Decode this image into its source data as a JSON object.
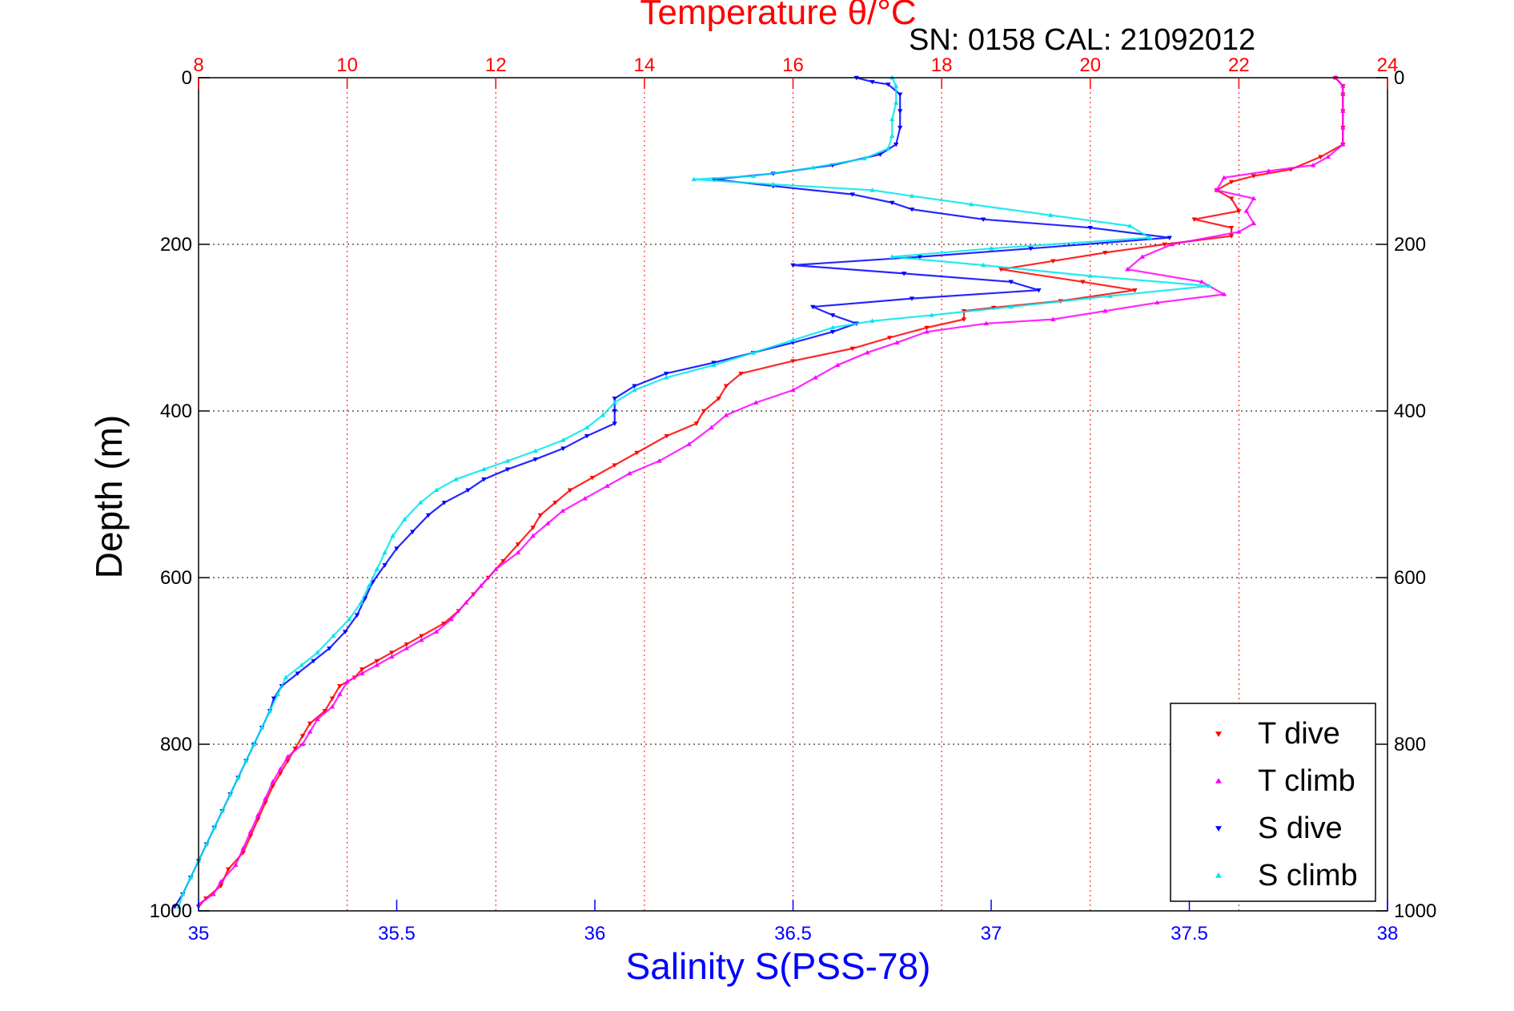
{
  "chart_data": {
    "type": "scatter",
    "title": "Temperature θ/°C",
    "subtitle": "SN: 0158  CAL: 21092012",
    "xlabel_bottom": "Salinity S(PSS-78)",
    "xlabel_top": "Temperature θ/°C",
    "ylabel": "Depth (m)",
    "x_bottom_range": [
      35,
      38
    ],
    "x_top_range": [
      8,
      24
    ],
    "y_range": [
      0,
      1000
    ],
    "y_reversed": true,
    "x_bottom_ticks": [
      "35",
      "35.5",
      "36",
      "36.5",
      "37",
      "37.5",
      "38"
    ],
    "x_top_ticks": [
      "8",
      "10",
      "12",
      "14",
      "16",
      "18",
      "20",
      "22",
      "24"
    ],
    "y_ticks": [
      "0",
      "200",
      "400",
      "600",
      "800",
      "1000"
    ],
    "grid": "vertical dotted at temperature ticks, horizontal dotted at depth ticks",
    "legend_position": "bottom-right",
    "colors": {
      "t_dive": "#ff0000",
      "t_climb": "#ff00ff",
      "s_dive": "#0000ff",
      "s_climb": "#00e5ee",
      "temp_axis": "#ff0000",
      "sal_axis": "#0000ff",
      "frame": "#000000"
    },
    "series": [
      {
        "name": "T dive",
        "axis": "temperature",
        "marker": "triangle-down",
        "points": [
          [
            23.3,
            0
          ],
          [
            23.4,
            10
          ],
          [
            23.4,
            20
          ],
          [
            23.4,
            40
          ],
          [
            23.4,
            60
          ],
          [
            23.4,
            80
          ],
          [
            23.1,
            95
          ],
          [
            22.7,
            110
          ],
          [
            22.2,
            118
          ],
          [
            21.9,
            125
          ],
          [
            21.7,
            135
          ],
          [
            21.9,
            145
          ],
          [
            22.0,
            160
          ],
          [
            21.4,
            170
          ],
          [
            21.9,
            180
          ],
          [
            21.9,
            190
          ],
          [
            21.0,
            200
          ],
          [
            20.2,
            210
          ],
          [
            19.5,
            220
          ],
          [
            18.8,
            230
          ],
          [
            19.9,
            245
          ],
          [
            20.6,
            255
          ],
          [
            19.6,
            268
          ],
          [
            18.7,
            276
          ],
          [
            18.3,
            280
          ],
          [
            18.3,
            290
          ],
          [
            17.8,
            300
          ],
          [
            17.3,
            312
          ],
          [
            16.8,
            325
          ],
          [
            16.0,
            340
          ],
          [
            15.3,
            355
          ],
          [
            15.1,
            370
          ],
          [
            15.0,
            385
          ],
          [
            14.8,
            400
          ],
          [
            14.7,
            415
          ],
          [
            14.3,
            430
          ],
          [
            13.9,
            450
          ],
          [
            13.6,
            465
          ],
          [
            13.3,
            480
          ],
          [
            13.0,
            495
          ],
          [
            12.8,
            510
          ],
          [
            12.6,
            525
          ],
          [
            12.5,
            540
          ],
          [
            12.3,
            560
          ],
          [
            12.1,
            580
          ],
          [
            11.9,
            600
          ],
          [
            11.7,
            620
          ],
          [
            11.5,
            640
          ],
          [
            11.3,
            655
          ],
          [
            11.0,
            670
          ],
          [
            10.8,
            680
          ],
          [
            10.6,
            690
          ],
          [
            10.4,
            700
          ],
          [
            10.2,
            710
          ],
          [
            10.1,
            720
          ],
          [
            9.9,
            730
          ],
          [
            9.8,
            745
          ],
          [
            9.7,
            760
          ],
          [
            9.5,
            775
          ],
          [
            9.4,
            790
          ],
          [
            9.3,
            805
          ],
          [
            9.2,
            820
          ],
          [
            9.1,
            835
          ],
          [
            9.0,
            850
          ],
          [
            8.9,
            870
          ],
          [
            8.8,
            890
          ],
          [
            8.7,
            910
          ],
          [
            8.6,
            930
          ],
          [
            8.4,
            950
          ],
          [
            8.3,
            970
          ],
          [
            8.1,
            985
          ],
          [
            8.0,
            995
          ]
        ]
      },
      {
        "name": "T climb",
        "axis": "temperature",
        "marker": "triangle-up",
        "points": [
          [
            23.3,
            0
          ],
          [
            23.4,
            10
          ],
          [
            23.4,
            20
          ],
          [
            23.4,
            40
          ],
          [
            23.4,
            60
          ],
          [
            23.4,
            80
          ],
          [
            23.2,
            95
          ],
          [
            23.0,
            105
          ],
          [
            22.4,
            112
          ],
          [
            21.8,
            120
          ],
          [
            21.7,
            135
          ],
          [
            22.2,
            145
          ],
          [
            22.1,
            160
          ],
          [
            22.2,
            175
          ],
          [
            22.0,
            185
          ],
          [
            21.1,
            200
          ],
          [
            20.7,
            215
          ],
          [
            20.5,
            230
          ],
          [
            21.5,
            245
          ],
          [
            21.8,
            260
          ],
          [
            20.9,
            270
          ],
          [
            20.2,
            280
          ],
          [
            19.5,
            290
          ],
          [
            18.6,
            295
          ],
          [
            17.8,
            305
          ],
          [
            17.4,
            318
          ],
          [
            17.0,
            330
          ],
          [
            16.6,
            345
          ],
          [
            16.3,
            360
          ],
          [
            16.0,
            375
          ],
          [
            15.5,
            390
          ],
          [
            15.1,
            405
          ],
          [
            14.9,
            420
          ],
          [
            14.6,
            440
          ],
          [
            14.2,
            460
          ],
          [
            13.8,
            475
          ],
          [
            13.5,
            490
          ],
          [
            13.2,
            505
          ],
          [
            12.9,
            520
          ],
          [
            12.7,
            535
          ],
          [
            12.5,
            550
          ],
          [
            12.3,
            570
          ],
          [
            12.0,
            590
          ],
          [
            11.8,
            610
          ],
          [
            11.6,
            630
          ],
          [
            11.4,
            650
          ],
          [
            11.2,
            665
          ],
          [
            11.0,
            675
          ],
          [
            10.8,
            685
          ],
          [
            10.6,
            695
          ],
          [
            10.4,
            705
          ],
          [
            10.2,
            715
          ],
          [
            10.0,
            725
          ],
          [
            9.9,
            740
          ],
          [
            9.8,
            755
          ],
          [
            9.6,
            770
          ],
          [
            9.5,
            785
          ],
          [
            9.4,
            800
          ],
          [
            9.2,
            815
          ],
          [
            9.1,
            830
          ],
          [
            9.0,
            845
          ],
          [
            8.9,
            865
          ],
          [
            8.8,
            885
          ],
          [
            8.7,
            905
          ],
          [
            8.6,
            925
          ],
          [
            8.5,
            945
          ],
          [
            8.3,
            965
          ],
          [
            8.2,
            980
          ],
          [
            8.0,
            992
          ]
        ]
      },
      {
        "name": "S dive",
        "axis": "salinity",
        "marker": "triangle-down",
        "points": [
          [
            36.66,
            0
          ],
          [
            36.7,
            5
          ],
          [
            36.74,
            8
          ],
          [
            36.77,
            20
          ],
          [
            36.77,
            40
          ],
          [
            36.77,
            60
          ],
          [
            36.76,
            80
          ],
          [
            36.72,
            92
          ],
          [
            36.6,
            105
          ],
          [
            36.45,
            115
          ],
          [
            36.3,
            122
          ],
          [
            36.45,
            130
          ],
          [
            36.65,
            140
          ],
          [
            36.75,
            150
          ],
          [
            36.8,
            158
          ],
          [
            36.98,
            170
          ],
          [
            37.25,
            180
          ],
          [
            37.45,
            192
          ],
          [
            37.1,
            205
          ],
          [
            36.82,
            215
          ],
          [
            36.5,
            225
          ],
          [
            36.78,
            235
          ],
          [
            37.05,
            245
          ],
          [
            37.12,
            255
          ],
          [
            36.8,
            265
          ],
          [
            36.55,
            275
          ],
          [
            36.6,
            285
          ],
          [
            36.66,
            295
          ],
          [
            36.6,
            305
          ],
          [
            36.5,
            318
          ],
          [
            36.4,
            330
          ],
          [
            36.3,
            342
          ],
          [
            36.18,
            355
          ],
          [
            36.1,
            370
          ],
          [
            36.05,
            385
          ],
          [
            36.05,
            400
          ],
          [
            36.05,
            415
          ],
          [
            35.98,
            430
          ],
          [
            35.92,
            445
          ],
          [
            35.85,
            458
          ],
          [
            35.78,
            470
          ],
          [
            35.72,
            482
          ],
          [
            35.68,
            495
          ],
          [
            35.62,
            510
          ],
          [
            35.58,
            525
          ],
          [
            35.54,
            545
          ],
          [
            35.5,
            565
          ],
          [
            35.47,
            585
          ],
          [
            35.44,
            605
          ],
          [
            35.42,
            625
          ],
          [
            35.4,
            645
          ],
          [
            35.37,
            665
          ],
          [
            35.33,
            685
          ],
          [
            35.29,
            700
          ],
          [
            35.25,
            715
          ],
          [
            35.21,
            730
          ],
          [
            35.19,
            745
          ],
          [
            35.18,
            760
          ],
          [
            35.16,
            780
          ],
          [
            35.14,
            800
          ],
          [
            35.12,
            820
          ],
          [
            35.1,
            840
          ],
          [
            35.08,
            860
          ],
          [
            35.06,
            880
          ],
          [
            35.04,
            900
          ],
          [
            35.02,
            920
          ],
          [
            35.0,
            940
          ],
          [
            34.98,
            960
          ],
          [
            34.96,
            980
          ],
          [
            34.94,
            995
          ]
        ]
      },
      {
        "name": "S climb",
        "axis": "salinity",
        "marker": "triangle-up",
        "points": [
          [
            36.75,
            0
          ],
          [
            36.76,
            10
          ],
          [
            36.76,
            30
          ],
          [
            36.75,
            50
          ],
          [
            36.75,
            70
          ],
          [
            36.74,
            85
          ],
          [
            36.68,
            97
          ],
          [
            36.55,
            108
          ],
          [
            36.4,
            118
          ],
          [
            36.25,
            122
          ],
          [
            36.45,
            128
          ],
          [
            36.7,
            135
          ],
          [
            36.8,
            142
          ],
          [
            36.95,
            152
          ],
          [
            37.15,
            165
          ],
          [
            37.35,
            178
          ],
          [
            37.4,
            192
          ],
          [
            37.0,
            205
          ],
          [
            36.75,
            215
          ],
          [
            36.98,
            225
          ],
          [
            37.25,
            238
          ],
          [
            37.55,
            250
          ],
          [
            37.3,
            262
          ],
          [
            37.05,
            275
          ],
          [
            36.85,
            285
          ],
          [
            36.7,
            292
          ],
          [
            36.6,
            300
          ],
          [
            36.5,
            315
          ],
          [
            36.4,
            330
          ],
          [
            36.3,
            345
          ],
          [
            36.18,
            360
          ],
          [
            36.1,
            375
          ],
          [
            36.05,
            390
          ],
          [
            36.02,
            405
          ],
          [
            35.98,
            420
          ],
          [
            35.92,
            435
          ],
          [
            35.85,
            448
          ],
          [
            35.78,
            460
          ],
          [
            35.72,
            470
          ],
          [
            35.65,
            482
          ],
          [
            35.6,
            495
          ],
          [
            35.56,
            510
          ],
          [
            35.52,
            530
          ],
          [
            35.49,
            550
          ],
          [
            35.47,
            570
          ],
          [
            35.45,
            590
          ],
          [
            35.43,
            610
          ],
          [
            35.41,
            630
          ],
          [
            35.38,
            650
          ],
          [
            35.34,
            670
          ],
          [
            35.3,
            690
          ],
          [
            35.26,
            705
          ],
          [
            35.22,
            720
          ],
          [
            35.2,
            740
          ],
          [
            35.18,
            760
          ],
          [
            35.16,
            780
          ],
          [
            35.14,
            800
          ],
          [
            35.12,
            820
          ],
          [
            35.1,
            840
          ],
          [
            35.08,
            860
          ],
          [
            35.06,
            880
          ],
          [
            35.04,
            900
          ],
          [
            35.02,
            920
          ],
          [
            35.0,
            940
          ],
          [
            34.98,
            960
          ],
          [
            34.96,
            980
          ],
          [
            34.95,
            995
          ]
        ]
      }
    ]
  }
}
